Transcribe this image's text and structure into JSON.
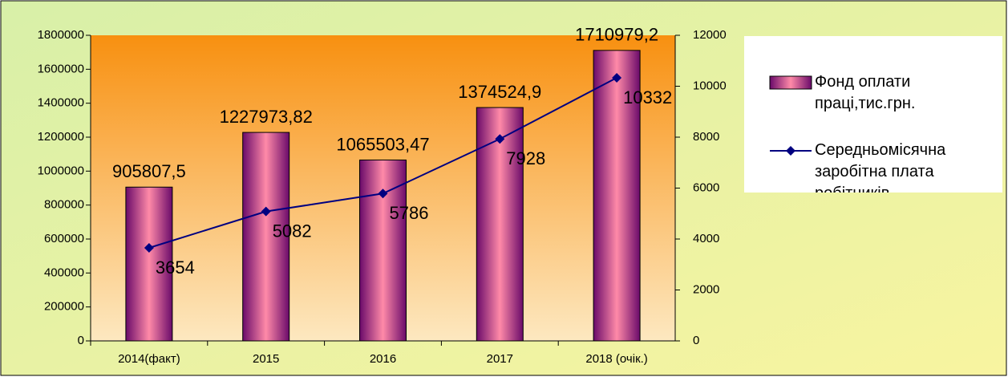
{
  "chart_data": {
    "type": "bar_line",
    "categories": [
      "2014(факт)",
      "2015",
      "2016",
      "2017",
      "2018 (очік.)"
    ],
    "series": [
      {
        "name": "Фонд оплати праці,тис.грн.",
        "type": "bar",
        "color": "#7a1a7a",
        "values": [
          905807.5,
          1227973.82,
          1065503.47,
          1374524.9,
          1710979.2
        ],
        "value_labels": [
          "905807,5",
          "1227973,82",
          "1065503,47",
          "1374524,9",
          "1710979,2"
        ]
      },
      {
        "name": "Середньомісячна заробітна плата робітників",
        "type": "line",
        "axis": "y2",
        "color": "#000080",
        "values": [
          3654,
          5082,
          5786,
          7928,
          10332
        ]
      }
    ],
    "ylim": [
      0,
      1800000
    ],
    "yticks": [
      0,
      200000,
      400000,
      600000,
      800000,
      1000000,
      1200000,
      1400000,
      1600000,
      1800000
    ],
    "y2lim": [
      0,
      12000
    ],
    "y2ticks": [
      0,
      2000,
      4000,
      6000,
      8000,
      10000,
      12000
    ],
    "legend": "right"
  }
}
